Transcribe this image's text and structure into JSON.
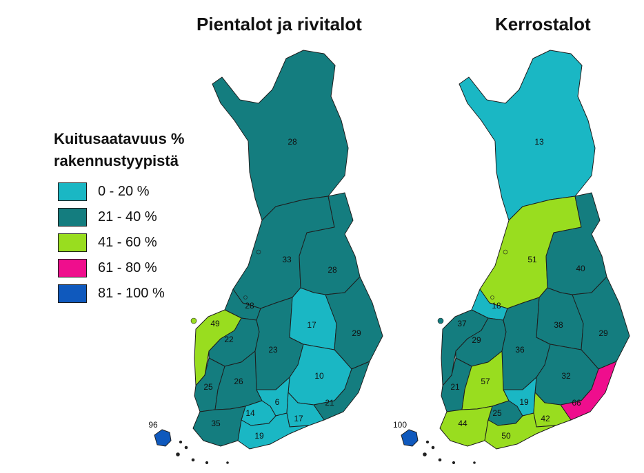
{
  "titles": {
    "left": "Pientalot ja rivitalot",
    "right": "Kerrostalot"
  },
  "legend": {
    "title_line1": "Kuitusaatavuus %",
    "title_line2": "rakennustyypistä",
    "classes": [
      {
        "label": "0 - 20 %",
        "color": "#1ab7c4"
      },
      {
        "label": "21 - 40 %",
        "color": "#147d7f"
      },
      {
        "label": "41 - 60 %",
        "color": "#99dd1f"
      },
      {
        "label": "61 - 80 %",
        "color": "#ef0e8d"
      },
      {
        "label": "81 - 100 %",
        "color": "#0f59bd"
      }
    ]
  },
  "maps": {
    "left": {
      "labels": {
        "lappi": "28",
        "pohjois_pohjanmaa": "33",
        "kainuu": "28",
        "keski_pohjanmaa": "28",
        "pohjanmaa": "49",
        "etela_pohjanmaa": "22",
        "keski_suomi": "23",
        "pohjois_savo": "17",
        "pohjois_karjala": "29",
        "etela_savo": "10",
        "satakunta": "25",
        "pirkanmaa": "26",
        "kanta_hame": "14",
        "paijat_hame": "6",
        "kymenlaakso": "17",
        "etela_karjala": "21",
        "varsinais_suomi": "35",
        "uusimaa": "19",
        "ahvenanmaa": "96"
      },
      "classes": {
        "lappi": 1,
        "pohjois_pohjanmaa": 1,
        "kainuu": 1,
        "keski_pohjanmaa": 1,
        "pohjanmaa": 2,
        "etela_pohjanmaa": 1,
        "keski_suomi": 1,
        "pohjois_savo": 0,
        "pohjois_karjala": 1,
        "etela_savo": 0,
        "satakunta": 1,
        "pirkanmaa": 1,
        "kanta_hame": 0,
        "paijat_hame": 0,
        "kymenlaakso": 0,
        "etela_karjala": 1,
        "varsinais_suomi": 1,
        "uusimaa": 0,
        "ahvenanmaa": 4
      }
    },
    "right": {
      "labels": {
        "lappi": "13",
        "pohjois_pohjanmaa": "51",
        "kainuu": "40",
        "keski_pohjanmaa": "18",
        "pohjanmaa": "37",
        "etela_pohjanmaa": "29",
        "keski_suomi": "36",
        "pohjois_savo": "38",
        "pohjois_karjala": "29",
        "etela_savo": "32",
        "satakunta": "21",
        "pirkanmaa": "57",
        "kanta_hame": "25",
        "paijat_hame": "19",
        "kymenlaakso": "42",
        "etela_karjala": "66",
        "varsinais_suomi": "44",
        "uusimaa": "50",
        "ahvenanmaa": "100"
      },
      "classes": {
        "lappi": 0,
        "pohjois_pohjanmaa": 2,
        "kainuu": 1,
        "keski_pohjanmaa": 0,
        "pohjanmaa": 1,
        "etela_pohjanmaa": 1,
        "keski_suomi": 1,
        "pohjois_savo": 1,
        "pohjois_karjala": 1,
        "etela_savo": 1,
        "satakunta": 1,
        "pirkanmaa": 2,
        "kanta_hame": 1,
        "paijat_hame": 0,
        "kymenlaakso": 2,
        "etela_karjala": 3,
        "varsinais_suomi": 2,
        "uusimaa": 2,
        "ahvenanmaa": 4
      }
    }
  }
}
